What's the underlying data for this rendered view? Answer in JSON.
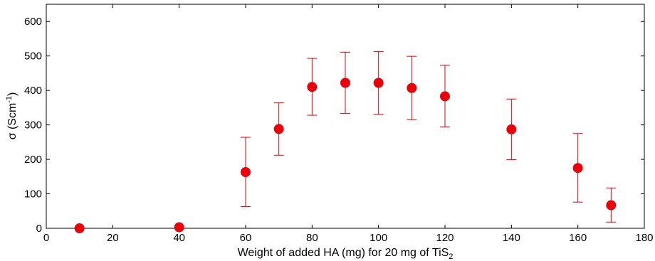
{
  "chart_data": {
    "type": "scatter",
    "xlabel": "Weight of added HA (mg) for 20 mg of TiS",
    "xlabel_subscript": "2",
    "ylabel": "σ (Scm",
    "ylabel_superscript": "-1",
    "ylabel_close": ")",
    "xlim": [
      0,
      180
    ],
    "ylim": [
      0,
      650
    ],
    "xticks": [
      0,
      20,
      40,
      60,
      80,
      100,
      120,
      140,
      160,
      180
    ],
    "yticks": [
      0,
      100,
      200,
      300,
      400,
      500,
      600
    ],
    "grid": false,
    "marker_color": "#e8000b",
    "errorbar_color": "#e8000b",
    "series": [
      {
        "x": [
          10,
          40,
          60,
          70,
          80,
          90,
          100,
          110,
          120,
          140,
          160,
          170
        ],
        "y": [
          0,
          3,
          163,
          288,
          410,
          422,
          422,
          407,
          383,
          287,
          175,
          67
        ],
        "y_low": [
          0,
          3,
          63,
          212,
          328,
          333,
          331,
          315,
          294,
          199,
          76,
          18
        ],
        "y_high": [
          0,
          3,
          264,
          364,
          493,
          511,
          513,
          499,
          473,
          375,
          275,
          117
        ]
      }
    ]
  }
}
